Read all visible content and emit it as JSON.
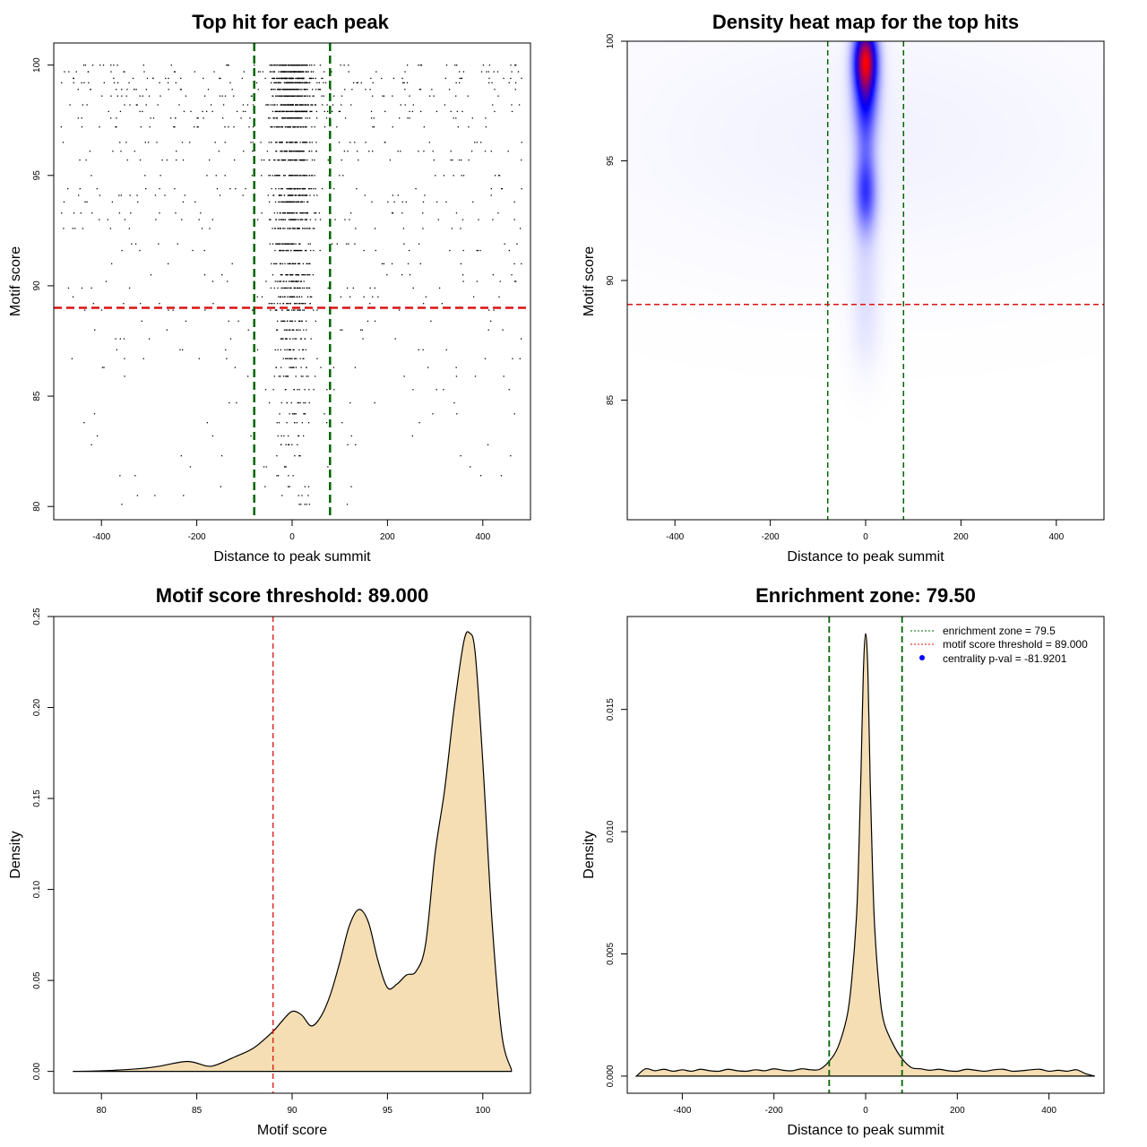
{
  "chart_data": [
    {
      "type": "scatter",
      "title": "Top hit for each peak",
      "xlabel": "Distance to peak summit",
      "ylabel": "Motif score",
      "xlim": [
        -500,
        500
      ],
      "ylim": [
        79.4,
        101
      ],
      "xticks": [
        -400,
        -200,
        0,
        200,
        400
      ],
      "yticks": [
        80,
        85,
        90,
        95,
        100
      ],
      "vlines": [
        -79.5,
        79.5
      ],
      "hline": 89.0,
      "vline_color": "#006400",
      "hline_color": "#dd1111",
      "point_color": "#000000",
      "score_levels": [
        100,
        99.7,
        99.4,
        99.2,
        98.9,
        98.6,
        98.2,
        97.9,
        97.6,
        97.2,
        96.5,
        96.1,
        95.7,
        95.0,
        94.4,
        94.1,
        93.8,
        93.3,
        93.0,
        92.6,
        91.9,
        91.6,
        91.0,
        90.5,
        90.2,
        89.9,
        89.5,
        89.2,
        88.9,
        88.4,
        88.0,
        87.6,
        87.1,
        86.7,
        86.3,
        85.9,
        85.3,
        84.7,
        84.2,
        83.8,
        83.2,
        82.8,
        82.3,
        81.8,
        81.4,
        80.9,
        80.5,
        80.1
      ]
    },
    {
      "type": "heatmap",
      "title": "Density heat map for the top hits",
      "xlabel": "Distance to peak summit",
      "ylabel": "Motif score",
      "xlim": [
        -500,
        500
      ],
      "ylim": [
        80,
        100
      ],
      "xticks": [
        -400,
        -200,
        0,
        200,
        400
      ],
      "yticks": [
        85,
        90,
        95,
        100
      ],
      "vlines": [
        -79.5,
        79.5
      ],
      "hline": 89.0,
      "vline_color": "#006400",
      "hline_color": "#dd1111",
      "colors": [
        "#ffffff",
        "#0000ff",
        "#ff0000"
      ],
      "hotspots": [
        {
          "x": 0,
          "y": 99.3,
          "sx": 16,
          "sy": 0.9,
          "w": 1.0
        },
        {
          "x": 0,
          "y": 98.0,
          "sx": 18,
          "sy": 1.4,
          "w": 0.55
        },
        {
          "x": 0,
          "y": 93.6,
          "sx": 16,
          "sy": 1.1,
          "w": 0.45
        },
        {
          "x": 0,
          "y": 96.0,
          "sx": 14,
          "sy": 2.0,
          "w": 0.2
        },
        {
          "x": 0,
          "y": 90.0,
          "sx": 20,
          "sy": 1.8,
          "w": 0.08
        },
        {
          "x": 0,
          "y": 87.5,
          "sx": 24,
          "sy": 1.2,
          "w": 0.03
        },
        {
          "x": 0,
          "y": 96.0,
          "sx": 420,
          "sy": 4.0,
          "w": 0.035
        }
      ]
    },
    {
      "type": "area",
      "title": "Motif score threshold: 89.000",
      "xlabel": "Motif score",
      "ylabel": "Density",
      "xlim": [
        77.5,
        102.5
      ],
      "ylim": [
        -0.012,
        0.25
      ],
      "xticks": [
        80,
        85,
        90,
        95,
        100
      ],
      "yticks": [
        0.0,
        0.05,
        0.1,
        0.15,
        0.2,
        0.25
      ],
      "ytick_labels": [
        "0.00",
        "0.05",
        "0.10",
        "0.15",
        "0.20",
        "0.25"
      ],
      "vline": 89.0,
      "vline_color": "#dd1111",
      "fill_color": "#f5deb3",
      "x": [
        78.5,
        80,
        82,
        83,
        84.5,
        85.5,
        86,
        87,
        88,
        89,
        89.5,
        90,
        90.5,
        91,
        91.5,
        92,
        92.5,
        93,
        93.5,
        94,
        94.5,
        95,
        95.5,
        96,
        96.5,
        97,
        97.5,
        98,
        98.5,
        99,
        99.3,
        99.6,
        100,
        100.5,
        101,
        101.5
      ],
      "values": [
        0.0,
        0.0003,
        0.0015,
        0.0028,
        0.0055,
        0.003,
        0.0035,
        0.008,
        0.013,
        0.022,
        0.028,
        0.033,
        0.031,
        0.025,
        0.03,
        0.042,
        0.06,
        0.08,
        0.089,
        0.082,
        0.061,
        0.046,
        0.048,
        0.053,
        0.055,
        0.07,
        0.12,
        0.155,
        0.2,
        0.236,
        0.241,
        0.23,
        0.17,
        0.08,
        0.02,
        0.001
      ]
    },
    {
      "type": "area",
      "title": "Enrichment zone: 79.50",
      "xlabel": "Distance to peak summit",
      "ylabel": "Density",
      "xlim": [
        -520,
        520
      ],
      "ylim": [
        -0.0007,
        0.0188
      ],
      "xticks": [
        -400,
        -200,
        0,
        200,
        400
      ],
      "yticks": [
        0.0,
        0.005,
        0.01,
        0.015
      ],
      "ytick_labels": [
        "0.000",
        "0.005",
        "0.010",
        "0.015"
      ],
      "vlines": [
        -79.5,
        79.5
      ],
      "vline_color": "#006400",
      "fill_color": "#f5deb3",
      "x": [
        -500,
        -480,
        -460,
        -440,
        -420,
        -400,
        -380,
        -360,
        -340,
        -320,
        -300,
        -280,
        -260,
        -240,
        -220,
        -200,
        -180,
        -160,
        -140,
        -120,
        -100,
        -80,
        -60,
        -40,
        -30,
        -20,
        -15,
        -10,
        -5,
        0,
        5,
        10,
        15,
        20,
        30,
        40,
        60,
        80,
        100,
        120,
        140,
        160,
        180,
        200,
        220,
        240,
        260,
        280,
        300,
        320,
        340,
        360,
        380,
        400,
        420,
        440,
        460,
        480,
        500
      ],
      "values": [
        0.0,
        0.0003,
        0.00022,
        0.00028,
        0.0002,
        0.00026,
        0.0002,
        0.00028,
        0.00022,
        0.0002,
        0.00028,
        0.00022,
        0.0002,
        0.00026,
        0.00022,
        0.0003,
        0.00024,
        0.00022,
        0.0003,
        0.00026,
        0.00028,
        0.0006,
        0.0012,
        0.0025,
        0.004,
        0.0065,
        0.009,
        0.0125,
        0.0165,
        0.0181,
        0.0165,
        0.012,
        0.0085,
        0.006,
        0.0035,
        0.0022,
        0.0013,
        0.0007,
        0.00035,
        0.0003,
        0.00024,
        0.00028,
        0.00022,
        0.0002,
        0.00028,
        0.00024,
        0.0002,
        0.00026,
        0.00028,
        0.0002,
        0.00022,
        0.00026,
        0.00028,
        0.0002,
        0.00024,
        0.0002,
        0.00026,
        0.0001,
        0.0
      ],
      "legend": {
        "placement": "top-right",
        "entries": [
          {
            "label": "enrichment zone = 79.5",
            "color": "#006400",
            "style": "dotted-line"
          },
          {
            "label": "motif score threshold = 89.000",
            "color": "#dd1111",
            "style": "dotted-line"
          },
          {
            "label": "centrality p-val = -81.9201",
            "color": "#0000ff",
            "style": "point"
          }
        ]
      }
    }
  ]
}
